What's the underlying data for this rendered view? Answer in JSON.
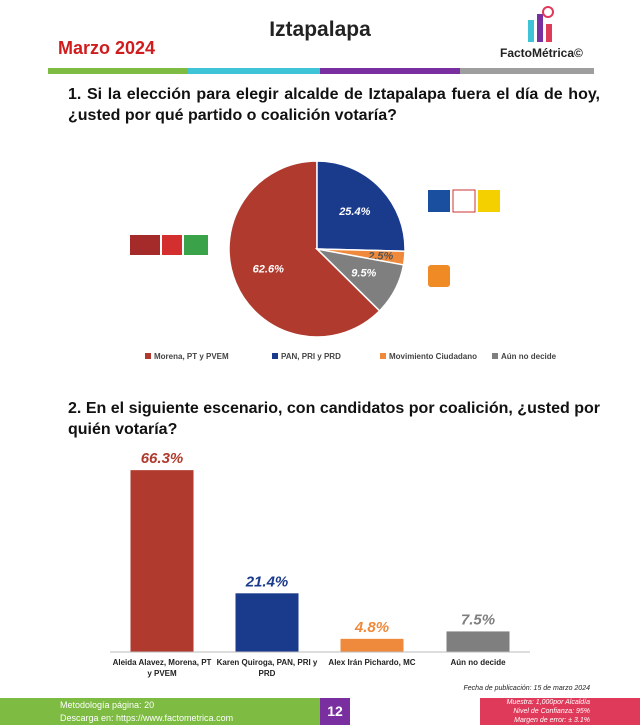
{
  "header": {
    "title": "Iztapalapa",
    "date": "Marzo 2024",
    "brand": "FactoMétrica©"
  },
  "chart_data": [
    {
      "type": "pie",
      "title": "1. Si la elección para elegir alcalde de Iztapalapa fuera el día de hoy, ¿usted por qué partido o coalición votaría?",
      "categories": [
        "Morena, PT y PVEM",
        "PAN, PRI y PRD",
        "Movimiento Ciudadano",
        "Aún no decide"
      ],
      "values": [
        62.6,
        25.4,
        2.5,
        9.5
      ],
      "value_labels": [
        "62.6%",
        "25.4%",
        "2.5%",
        "9.5%"
      ],
      "colors": [
        "#b03a2e",
        "#1a3a8c",
        "#ef8a3c",
        "#7f7f7f"
      ],
      "legend": "bottom"
    },
    {
      "type": "bar",
      "title": "2. En el siguiente escenario, con candidatos por coalición, ¿usted por quién votaría?",
      "categories": [
        "Aleida Alavez, Morena, PT y PVEM",
        "Karen Quiroga, PAN, PRI y PRD",
        "Alex Irán Pichardo, MC",
        "Aún no decide"
      ],
      "values": [
        66.3,
        21.4,
        4.8,
        7.5
      ],
      "value_labels": [
        "66.3%",
        "21.4%",
        "4.8%",
        "7.5%"
      ],
      "colors": [
        "#b03a2e",
        "#1a3a8c",
        "#ef8a3c",
        "#7f7f7f"
      ],
      "ylim": [
        0,
        70
      ]
    }
  ],
  "footer": {
    "publication_date": "Fecha de publicación: 15 de marzo 2024",
    "methodology": "Metodología página: 20",
    "download": "Descarga en: https://www.factometrica.com",
    "page": "12",
    "sample": "Muestra: 1,000por Alcaldía",
    "confidence": "Nivel de Confianza: 95%",
    "margin": "Margen de error: ± 3.1%"
  }
}
